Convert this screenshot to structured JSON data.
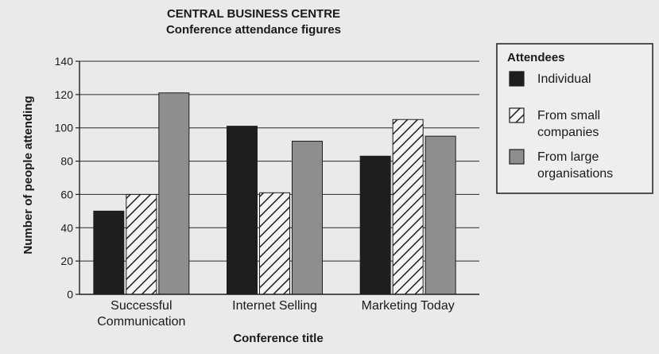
{
  "chart_data": {
    "type": "bar",
    "title": "CENTRAL BUSINESS CENTRE",
    "subtitle": "Conference attendance figures",
    "xlabel": "Conference title",
    "ylabel": "Number of people attending",
    "ylim": [
      0,
      140
    ],
    "yticks": [
      0,
      20,
      40,
      60,
      80,
      100,
      120,
      140
    ],
    "grid": true,
    "legend_position": "right",
    "legend_title": "Attendees",
    "categories": [
      "Successful Communication",
      "Internet Selling",
      "Marketing Today"
    ],
    "category_lines": [
      [
        "Successful",
        "Communication"
      ],
      [
        "Internet Selling"
      ],
      [
        "Marketing Today"
      ]
    ],
    "series": [
      {
        "name": "Individual",
        "legend_lines": [
          "Individual"
        ],
        "fill": "solid",
        "color": "#1e1e1e",
        "values": [
          50,
          101,
          83
        ]
      },
      {
        "name": "From small companies",
        "legend_lines": [
          "From small",
          "companies"
        ],
        "fill": "hatch",
        "color": "#f4f4f4",
        "values": [
          60,
          61,
          105
        ]
      },
      {
        "name": "From large organisations",
        "legend_lines": [
          "From large",
          "organisations"
        ],
        "fill": "solid",
        "color": "#8e8e8e",
        "values": [
          121,
          92,
          95
        ]
      }
    ]
  }
}
